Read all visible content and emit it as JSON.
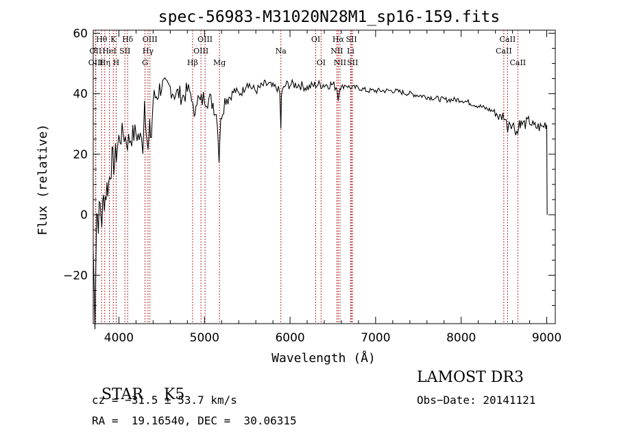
{
  "chart_data": {
    "type": "line",
    "title": "spec-56983-M31020N28M1_sp16-159.fits",
    "xlabel": "Wavelength (Å)",
    "ylabel": "Flux (relative)",
    "xlim": [
      3700,
      9100
    ],
    "ylim": [
      -36,
      61
    ],
    "xticks": [
      4000,
      5000,
      6000,
      7000,
      8000,
      9000
    ],
    "yticks": [
      -20,
      0,
      20,
      40,
      60
    ],
    "series_color": "#000000",
    "line_color": "#b22222",
    "x": [
      3700,
      3720,
      3740,
      3760,
      3780,
      3800,
      3820,
      3840,
      3860,
      3880,
      3900,
      3920,
      3940,
      3960,
      3980,
      4000,
      4050,
      4100,
      4150,
      4200,
      4250,
      4280,
      4300,
      4320,
      4340,
      4360,
      4380,
      4400,
      4450,
      4500,
      4550,
      4600,
      4650,
      4700,
      4750,
      4800,
      4850,
      4880,
      4900,
      4950,
      5000,
      5050,
      5100,
      5150,
      5170,
      5180,
      5200,
      5250,
      5300,
      5350,
      5400,
      5450,
      5500,
      5550,
      5600,
      5650,
      5700,
      5750,
      5800,
      5850,
      5880,
      5893,
      5900,
      5950,
      6000,
      6100,
      6200,
      6300,
      6400,
      6500,
      6550,
      6563,
      6580,
      6600,
      6650,
      6700,
      6800,
      6900,
      7000,
      7200,
      7400,
      7600,
      7800,
      8000,
      8200,
      8400,
      8450,
      8500,
      8542,
      8560,
      8600,
      8662,
      8680,
      8700,
      8750,
      8800,
      8850,
      8900,
      8950,
      8980,
      9000,
      9005
    ],
    "y": [
      -12,
      -34,
      1,
      -2,
      3,
      -2,
      5,
      6,
      9,
      10,
      15,
      18,
      17,
      19,
      22,
      25,
      27,
      24,
      26,
      27,
      25,
      23,
      38,
      30,
      20,
      28,
      26,
      38,
      40,
      43,
      42,
      42,
      40,
      40,
      39,
      41,
      40,
      30,
      39,
      37,
      39,
      38,
      37,
      32,
      19,
      26,
      34,
      39,
      39,
      41,
      40,
      41,
      44,
      42,
      41,
      42,
      43,
      43,
      42,
      42,
      40,
      28,
      40,
      43,
      43,
      43,
      42,
      43,
      43,
      43,
      42,
      38,
      43,
      42,
      43,
      42,
      42,
      41,
      41,
      41,
      40,
      39,
      38,
      38,
      36,
      34,
      32,
      33,
      29,
      31,
      30,
      27,
      31,
      30,
      30,
      31,
      29,
      29,
      29,
      30,
      30,
      0
    ],
    "lines": [
      {
        "label": "Hθ",
        "wave": 3798,
        "row": 1
      },
      {
        "label": "OII",
        "wave": 3727,
        "row": 2
      },
      {
        "label": "OIII",
        "wave": 3730,
        "row": 3
      },
      {
        "label": "K",
        "wave": 3934,
        "row": 1
      },
      {
        "label": "HeI",
        "wave": 3889,
        "row": 2
      },
      {
        "label": "Hη",
        "wave": 3835,
        "row": 3
      },
      {
        "label": "Hδ",
        "wave": 4102,
        "row": 1
      },
      {
        "label": "SII",
        "wave": 4070,
        "row": 2
      },
      {
        "label": "H",
        "wave": 3968,
        "row": 3
      },
      {
        "label": "OIII",
        "wave": 4363,
        "row": 1
      },
      {
        "label": "Hγ",
        "wave": 4340,
        "row": 2
      },
      {
        "label": "G",
        "wave": 4305,
        "row": 3
      },
      {
        "label": "OIII",
        "wave": 5007,
        "row": 1
      },
      {
        "label": "OIII",
        "wave": 4959,
        "row": 2
      },
      {
        "label": "Hβ",
        "wave": 4861,
        "row": 3
      },
      {
        "label": "Mg",
        "wave": 5175,
        "row": 3
      },
      {
        "label": "Na",
        "wave": 5893,
        "row": 2
      },
      {
        "label": "OI",
        "wave": 6300,
        "row": 1
      },
      {
        "label": "OI",
        "wave": 6363,
        "row": 3
      },
      {
        "label": "Hα",
        "wave": 6563,
        "row": 1
      },
      {
        "label": "NII",
        "wave": 6548,
        "row": 2
      },
      {
        "label": "NII",
        "wave": 6584,
        "row": 3
      },
      {
        "label": "SII",
        "wave": 6717,
        "row": 1
      },
      {
        "label": "Li",
        "wave": 6708,
        "row": 2
      },
      {
        "label": "SII",
        "wave": 6731,
        "row": 3
      },
      {
        "label": "CaII",
        "wave": 8542,
        "row": 1
      },
      {
        "label": "CaII",
        "wave": 8498,
        "row": 2
      },
      {
        "label": "CaII",
        "wave": 8662,
        "row": 3
      }
    ]
  },
  "info": {
    "class": "STAR",
    "subclass": "K5",
    "survey": "LAMOST DR3",
    "redshift": "cz = −31.5 ± 53.7 km/s",
    "obsdate": "Obs−Date: 20141121",
    "coords": "RA =  19.16540, DEC =  30.06315"
  }
}
